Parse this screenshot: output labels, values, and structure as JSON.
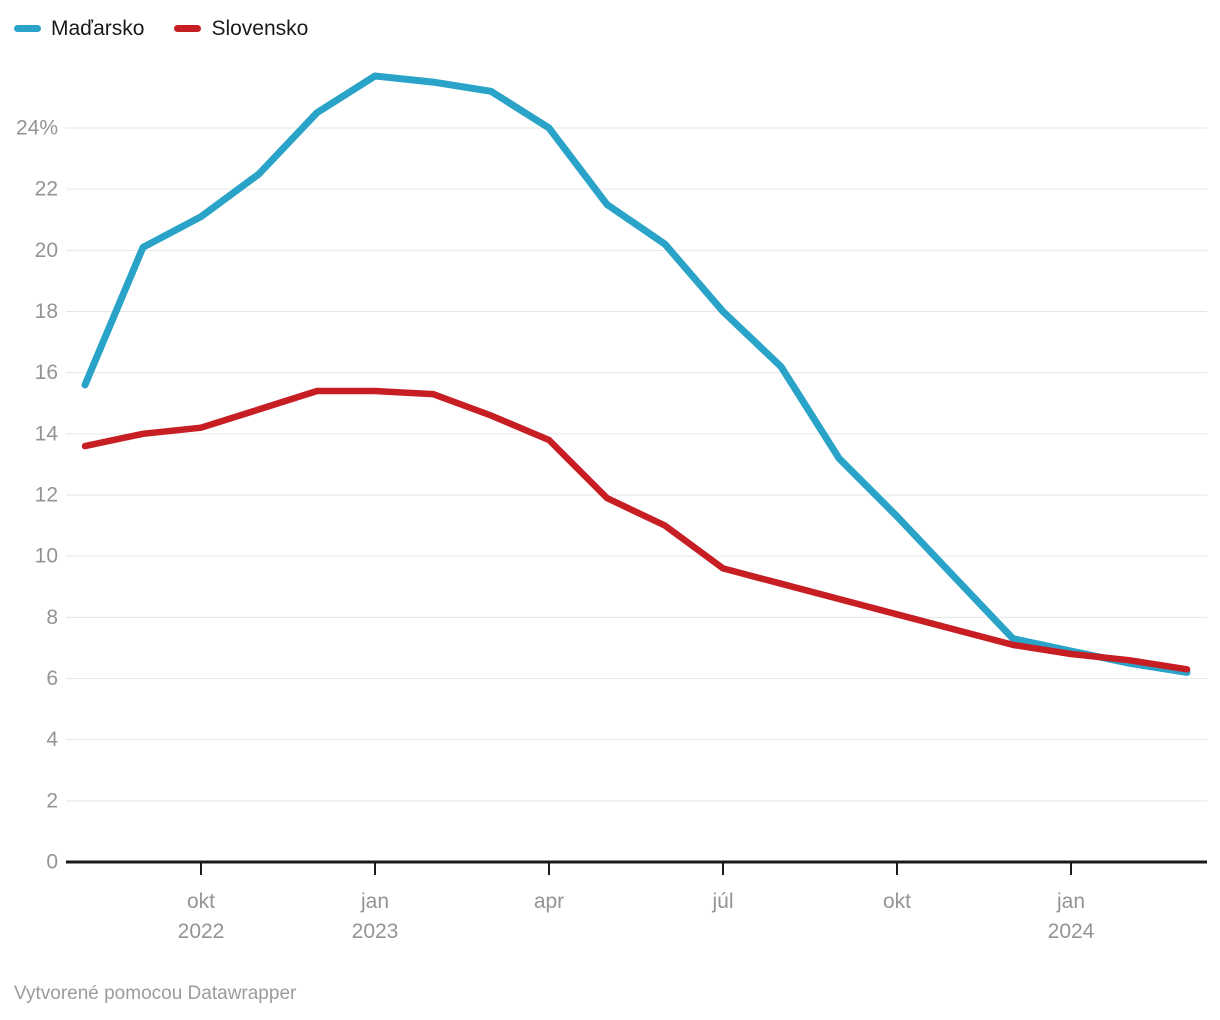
{
  "legend": {
    "items": [
      {
        "label": "Maďarsko",
        "color": "#29A3C7"
      },
      {
        "label": "Slovensko",
        "color": "#C71E24"
      }
    ]
  },
  "footer": {
    "text": "Vytvorené pomocou Datawrapper"
  },
  "chart_data": {
    "type": "line",
    "title": "",
    "unit": "%",
    "x": [
      "aug 2022",
      "sep 2022",
      "okt 2022",
      "nov 2022",
      "dec 2022",
      "jan 2023",
      "feb 2023",
      "mar 2023",
      "apr 2023",
      "máj 2023",
      "jún 2023",
      "júl 2023",
      "aug 2023",
      "sep 2023",
      "okt 2023",
      "nov 2023",
      "dec 2023",
      "jan 2024",
      "feb 2024",
      "mar 2024"
    ],
    "series": [
      {
        "name": "Maďarsko",
        "color": "#29A3C7",
        "values": [
          15.6,
          20.1,
          21.1,
          22.5,
          24.5,
          25.7,
          25.5,
          25.2,
          24.0,
          21.5,
          20.2,
          18.0,
          16.2,
          13.2,
          11.3,
          9.3,
          7.3,
          6.9,
          6.5,
          6.2
        ]
      },
      {
        "name": "Slovensko",
        "color": "#C71E24",
        "values": [
          13.6,
          14.0,
          14.2,
          14.8,
          15.4,
          15.4,
          15.3,
          14.6,
          13.8,
          11.9,
          11.0,
          9.6,
          9.1,
          8.6,
          8.1,
          7.6,
          7.1,
          6.8,
          6.6,
          6.3
        ]
      }
    ],
    "ylim": [
      0,
      26
    ],
    "y_ticks": [
      0,
      2,
      4,
      6,
      8,
      10,
      12,
      14,
      16,
      18,
      20,
      22,
      24
    ],
    "y_top_tick_label": "24%",
    "x_ticks": [
      {
        "index": 2,
        "month": "okt",
        "year": "2022"
      },
      {
        "index": 5,
        "month": "jan",
        "year": "2023"
      },
      {
        "index": 8,
        "month": "apr",
        "year": ""
      },
      {
        "index": 11,
        "month": "júl",
        "year": ""
      },
      {
        "index": 14,
        "month": "okt",
        "year": ""
      },
      {
        "index": 17,
        "month": "jan",
        "year": "2024"
      }
    ],
    "grid": true,
    "legend_position": "top-left",
    "axis_color": "#1a1a1a",
    "grid_color": "#e6e6e6",
    "tick_label_color": "#949494"
  }
}
